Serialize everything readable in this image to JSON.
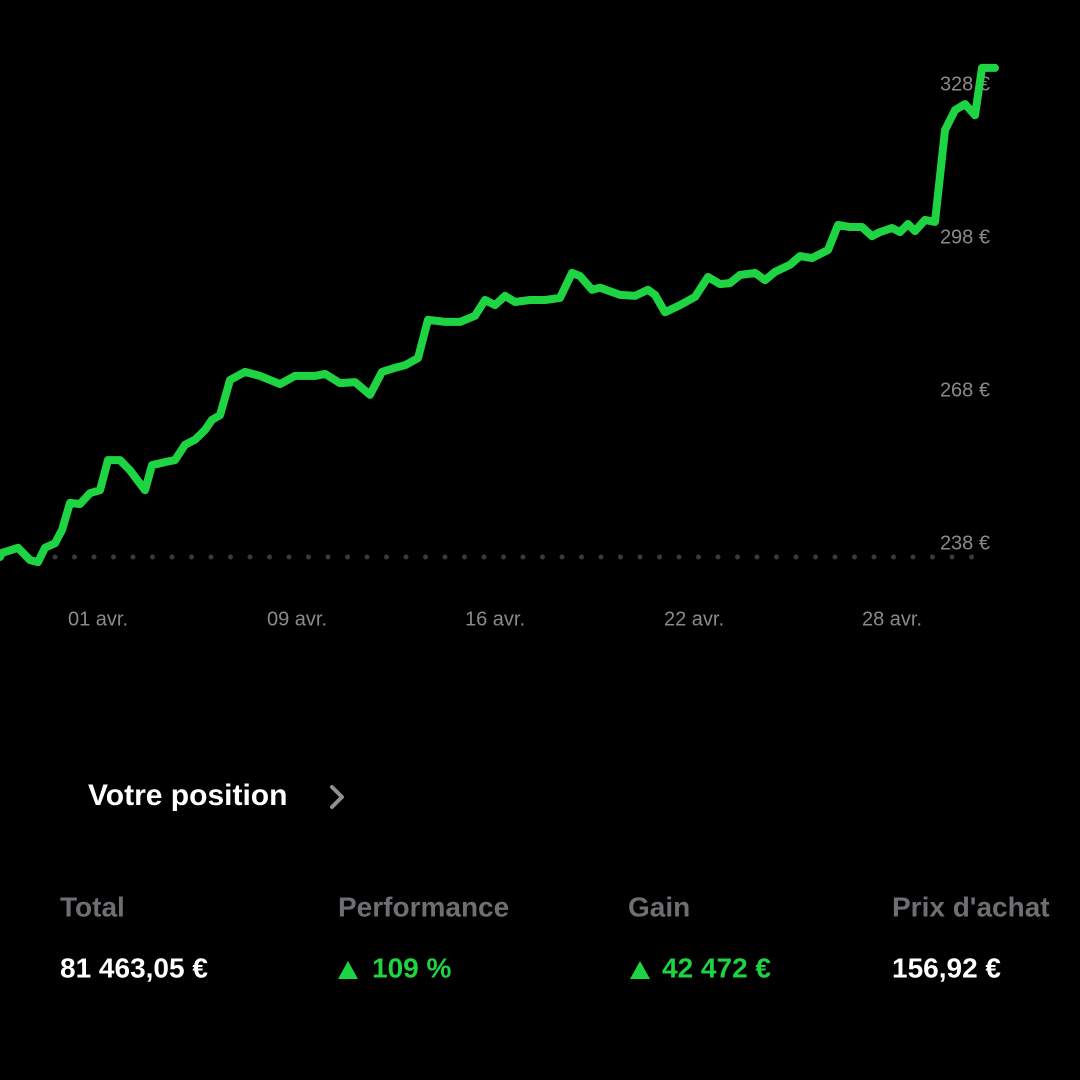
{
  "chart_data": {
    "type": "line",
    "x": [
      0,
      0.2,
      1.8,
      3,
      3.8,
      4.5,
      5.5,
      6.2,
      7,
      8,
      9,
      10,
      10.8,
      12,
      13,
      14.5,
      15.2,
      16.5,
      17.5,
      18.5,
      19.5,
      20.5,
      21.2,
      22,
      23,
      24.5,
      26,
      28,
      29.5,
      31.5,
      32.5,
      34,
      35.5,
      37,
      38.2,
      39.5,
      40.5,
      41.8,
      42.8,
      44.5,
      46,
      47.5,
      48.5,
      49.5,
      50.5,
      51.5,
      53,
      54.5,
      56,
      57.2,
      58,
      59.2,
      60,
      62,
      63.5,
      64.8,
      65.5,
      66.5,
      68,
      69.5,
      70.8,
      72,
      73,
      74,
      75.5,
      76.5,
      77.5,
      79,
      80,
      81.2,
      82.8,
      83.8,
      85,
      86.2,
      87.2,
      88,
      89.2,
      90,
      90.8,
      91.5,
      92.5,
      93.5,
      94.5,
      95.5,
      96.5,
      97.5,
      98.2,
      99.5
    ],
    "series": [
      {
        "color": "#1fd443",
        "values": [
          238,
          238.8,
          239.8,
          237.4,
          237,
          239.8,
          240.7,
          243.3,
          248.6,
          248.4,
          250.5,
          251.1,
          257,
          257,
          255,
          251.1,
          256,
          256.6,
          257,
          260,
          261,
          262.9,
          264.9,
          265.8,
          272.7,
          274.3,
          273.5,
          271.9,
          273.5,
          273.5,
          273.9,
          272.1,
          272.3,
          269.8,
          274.3,
          275.1,
          275.6,
          277,
          284.5,
          284.1,
          284.1,
          285.3,
          288.4,
          287.4,
          289.2,
          288,
          288.4,
          288.4,
          288.8,
          293.7,
          293.1,
          290.4,
          290.8,
          289.4,
          289.2,
          290.4,
          289.4,
          286,
          287.4,
          289,
          292.9,
          291.5,
          291.7,
          293.3,
          293.7,
          292.3,
          293.9,
          295.3,
          297,
          296.6,
          298.2,
          303.1,
          302.7,
          302.7,
          300.9,
          301.7,
          302.5,
          301.7,
          303.3,
          301.9,
          304.1,
          303.7,
          321.7,
          325.6,
          326.8,
          324.6,
          333.9,
          333.9
        ]
      }
    ],
    "xlim": [
      0,
      100
    ],
    "xticks": [
      {
        "value": 9.8,
        "label": "01 avr."
      },
      {
        "value": 29.7,
        "label": "09 avr."
      },
      {
        "value": 49.5,
        "label": "16 avr."
      },
      {
        "value": 69.4,
        "label": "22 avr."
      },
      {
        "value": 89.2,
        "label": "28 avr."
      }
    ],
    "ylim": [
      230,
      340
    ],
    "yticks": [
      {
        "value": 238,
        "label": "238 €"
      },
      {
        "value": 268,
        "label": "268 €"
      },
      {
        "value": 298,
        "label": "298 €"
      },
      {
        "value": 328,
        "label": "328 €"
      }
    ],
    "reference_line": 238
  },
  "position": {
    "title": "Votre position",
    "stats": [
      {
        "label": "Total",
        "value": "81 463,05 €"
      },
      {
        "label": "Performance",
        "value": "109 %"
      },
      {
        "label": "Gain",
        "value": "42 472 €"
      },
      {
        "label": "Prix d'achat",
        "value": "156,92 €"
      }
    ]
  }
}
